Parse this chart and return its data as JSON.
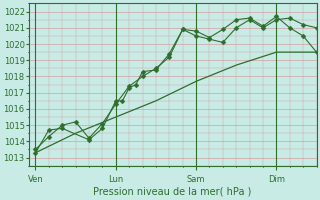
{
  "bg_color": "#c8ebe6",
  "grid_color": "#d4a0a0",
  "line_color": "#2d6e2d",
  "marker": "D",
  "marker_size": 2.5,
  "xlabel": "Pression niveau de la mer( hPa )",
  "ylim": [
    1012.5,
    1022.5
  ],
  "yticks": [
    1013,
    1014,
    1015,
    1016,
    1017,
    1018,
    1019,
    1020,
    1021,
    1022
  ],
  "day_labels": [
    "Ven",
    "Lun",
    "Sam",
    "Dim"
  ],
  "day_positions": [
    0,
    48,
    96,
    144
  ],
  "vline_positions": [
    0,
    48,
    96,
    144
  ],
  "xlim": [
    -4,
    168
  ],
  "line1_x": [
    0,
    8,
    16,
    32,
    40,
    48,
    52,
    56,
    60,
    64,
    72,
    80,
    88,
    96,
    104,
    112,
    120,
    128,
    136,
    144,
    152,
    160,
    168
  ],
  "line1_y": [
    1013.3,
    1014.7,
    1014.8,
    1014.1,
    1014.8,
    1016.5,
    1016.5,
    1017.3,
    1017.5,
    1018.3,
    1018.4,
    1019.4,
    1020.9,
    1020.8,
    1020.4,
    1020.9,
    1021.5,
    1021.6,
    1021.1,
    1021.7,
    1021.0,
    1020.5,
    1019.5
  ],
  "line2_x": [
    0,
    8,
    16,
    24,
    32,
    40,
    48,
    56,
    64,
    72,
    80,
    88,
    96,
    104,
    112,
    120,
    128,
    136,
    144,
    152,
    160,
    168
  ],
  "line2_y": [
    1013.5,
    1014.3,
    1015.0,
    1015.2,
    1014.2,
    1015.1,
    1016.3,
    1017.4,
    1018.0,
    1018.5,
    1019.2,
    1020.9,
    1020.5,
    1020.3,
    1020.1,
    1021.0,
    1021.5,
    1021.0,
    1021.5,
    1021.6,
    1021.2,
    1021.0
  ],
  "line3_x": [
    0,
    24,
    48,
    72,
    96,
    120,
    144,
    168
  ],
  "line3_y": [
    1013.3,
    1014.5,
    1015.5,
    1016.5,
    1017.7,
    1018.7,
    1019.5,
    1019.5
  ],
  "figsize": [
    3.2,
    2.0
  ],
  "dpi": 100,
  "tick_fontsize": 6,
  "xlabel_fontsize": 7,
  "ylabel_color": "#2d6e2d",
  "xlabel_color": "#2d6e2d",
  "xtick_color": "#2d6e2d",
  "spine_color": "#2d6e2d"
}
